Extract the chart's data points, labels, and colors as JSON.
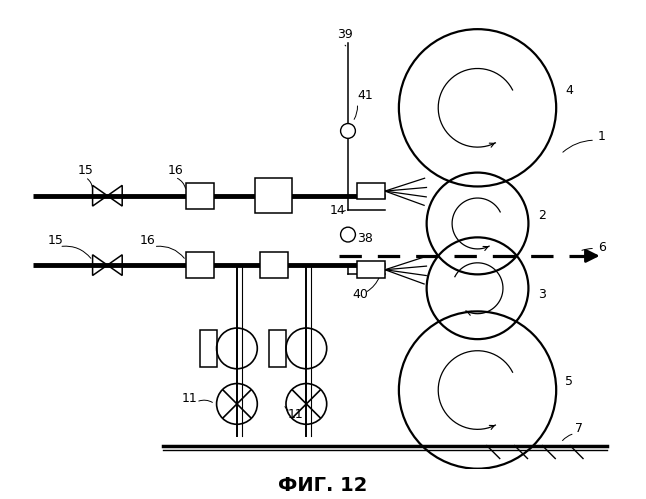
{
  "title": "ФИГ. 12",
  "bg_color": "#ffffff",
  "fig_width": 6.46,
  "fig_height": 4.99,
  "dpi": 100
}
